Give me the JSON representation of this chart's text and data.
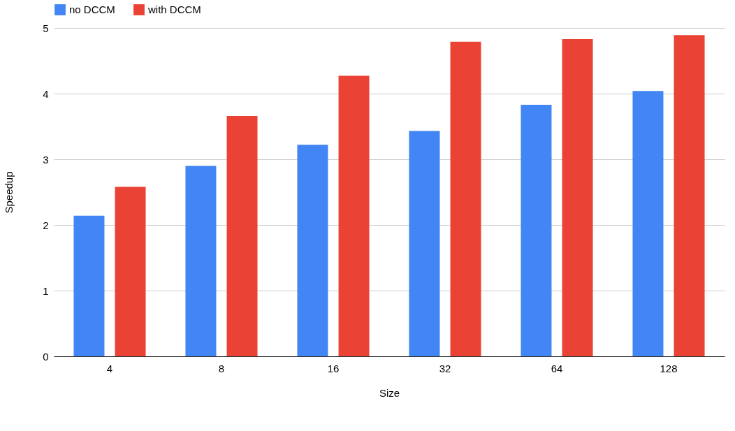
{
  "chart_data": {
    "type": "bar",
    "xlabel": "Size",
    "ylabel": "Speedup",
    "categories": [
      "4",
      "8",
      "16",
      "32",
      "64",
      "128"
    ],
    "series": [
      {
        "name": "no DCCM",
        "color": "#4285f4",
        "values": [
          2.14,
          2.9,
          3.22,
          3.43,
          3.83,
          4.04
        ]
      },
      {
        "name": "with DCCM",
        "color": "#ea4335",
        "values": [
          2.58,
          3.66,
          4.27,
          4.79,
          4.83,
          4.89
        ]
      }
    ],
    "ylim": [
      0,
      5
    ],
    "yticks": [
      0,
      1,
      2,
      3,
      4,
      5
    ],
    "grid": "y",
    "legend": "top"
  }
}
